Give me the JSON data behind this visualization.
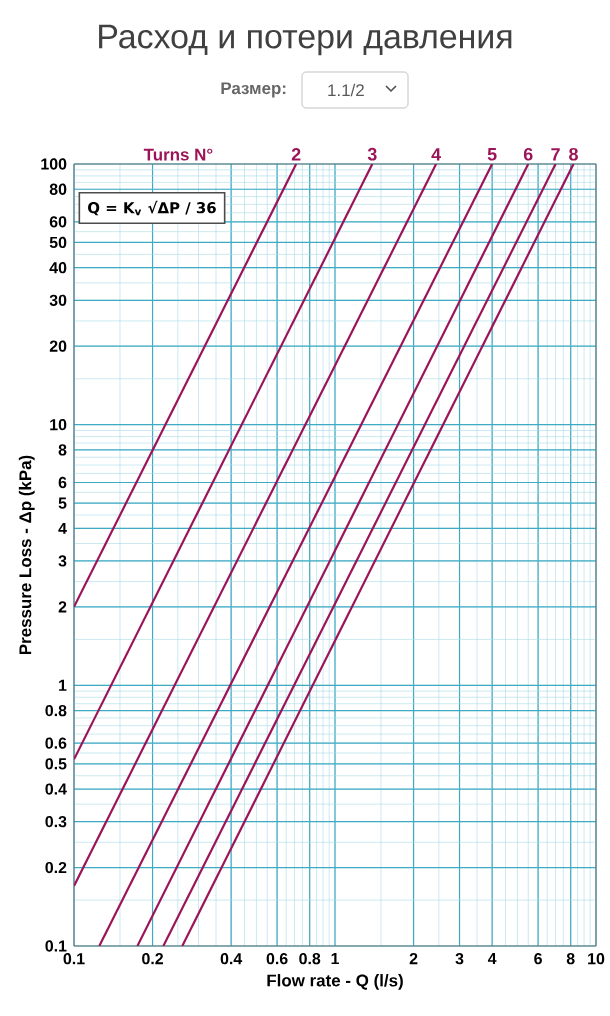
{
  "chart_data": {
    "type": "line",
    "title": "Расход и потери давления",
    "xlabel": "Flow rate - **Q** (l/s)",
    "ylabel": "Pressure Loss - Δp (kPa)",
    "legend_title": "Turns N°",
    "annotations": [
      "Размер:",
      "1.1/2",
      "Q = K$_{v}$ √ΔP / 36"
    ],
    "log": "xy",
    "grid": true,
    "xlim": [
      0.1,
      10
    ],
    "ylim": [
      0.1,
      100
    ],
    "xticks": [
      0.1,
      0.2,
      0.4,
      0.6,
      0.8,
      1,
      2,
      3,
      4,
      6,
      8,
      10
    ],
    "yticks": [
      0.1,
      0.2,
      0.3,
      0.4,
      0.5,
      0.6,
      0.8,
      1,
      2,
      3,
      4,
      5,
      6,
      8,
      10,
      20,
      30,
      40,
      50,
      60,
      80,
      100
    ],
    "series": [
      {
        "name": "2",
        "color": "#9c1458",
        "x": [
          0.1,
          0.71
        ],
        "values": [
          2,
          100
        ]
      },
      {
        "name": "3",
        "color": "#9c1458",
        "x": [
          0.1,
          1.39
        ],
        "values": [
          0.52,
          100
        ]
      },
      {
        "name": "4",
        "color": "#9c1458",
        "x": [
          0.1,
          2.44
        ],
        "values": [
          0.17,
          100
        ]
      },
      {
        "name": "5",
        "color": "#9c1458",
        "x": [
          0.125,
          4.0
        ],
        "values": [
          0.1,
          100
        ]
      },
      {
        "name": "6",
        "color": "#9c1458",
        "x": [
          0.175,
          5.5
        ],
        "values": [
          0.1,
          100
        ]
      },
      {
        "name": "7",
        "color": "#9c1458",
        "x": [
          0.22,
          7.0
        ],
        "values": [
          0.1,
          100
        ]
      },
      {
        "name": "8",
        "color": "#9c1458",
        "x": [
          0.26,
          8.2
        ],
        "values": [
          0.1,
          100
        ]
      }
    ]
  }
}
